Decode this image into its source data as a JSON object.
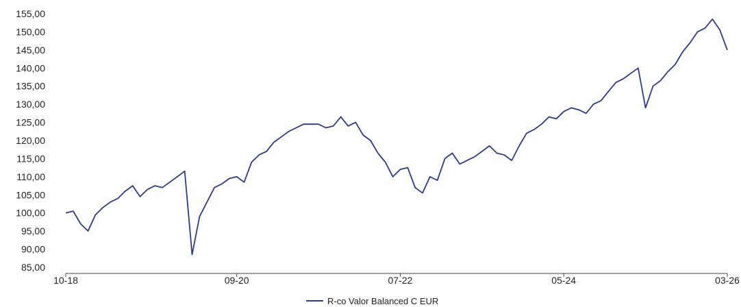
{
  "chart_data": {
    "type": "line",
    "title": "",
    "xlabel": "",
    "ylabel": "",
    "ylim": [
      85,
      155
    ],
    "yticks": [
      85,
      90,
      95,
      100,
      105,
      110,
      115,
      120,
      125,
      130,
      135,
      140,
      145,
      150,
      155
    ],
    "ytick_labels": [
      "85,00",
      "90,00",
      "95,00",
      "100,00",
      "105,00",
      "110,00",
      "115,00",
      "120,00",
      "125,00",
      "130,00",
      "135,00",
      "140,00",
      "145,00",
      "150,00",
      "155,00"
    ],
    "xlim": [
      "2018-10",
      "2026-03"
    ],
    "xticks": [
      "2018-10",
      "2020-09",
      "2022-07",
      "2024-05",
      "2026-03"
    ],
    "xtick_labels": [
      "10-18",
      "09-20",
      "07-22",
      "05-24",
      "03-26"
    ],
    "grid": false,
    "legend_position": "bottom-center",
    "series": [
      {
        "name": "R-co Valor Balanced C EUR",
        "color": "#2e3a80",
        "points": [
          [
            "2018-10",
            100.0
          ],
          [
            "2018-11",
            100.5
          ],
          [
            "2018-12",
            97.0
          ],
          [
            "2019-01",
            95.0
          ],
          [
            "2019-02",
            99.5
          ],
          [
            "2019-03",
            101.5
          ],
          [
            "2019-04",
            103.0
          ],
          [
            "2019-05",
            104.0
          ],
          [
            "2019-06",
            106.0
          ],
          [
            "2019-07",
            107.5
          ],
          [
            "2019-08",
            104.5
          ],
          [
            "2019-09",
            106.5
          ],
          [
            "2019-10",
            107.5
          ],
          [
            "2019-11",
            107.0
          ],
          [
            "2019-12",
            108.5
          ],
          [
            "2020-01",
            110.0
          ],
          [
            "2020-02",
            111.5
          ],
          [
            "2020-03",
            88.5
          ],
          [
            "2020-04",
            99.0
          ],
          [
            "2020-05",
            103.0
          ],
          [
            "2020-06",
            107.0
          ],
          [
            "2020-07",
            108.0
          ],
          [
            "2020-08",
            109.5
          ],
          [
            "2020-09",
            110.0
          ],
          [
            "2020-10",
            108.5
          ],
          [
            "2020-11",
            114.0
          ],
          [
            "2020-12",
            116.0
          ],
          [
            "2021-01",
            117.0
          ],
          [
            "2021-02",
            119.5
          ],
          [
            "2021-03",
            121.0
          ],
          [
            "2021-04",
            122.5
          ],
          [
            "2021-05",
            123.5
          ],
          [
            "2021-06",
            124.5
          ],
          [
            "2021-07",
            124.5
          ],
          [
            "2021-08",
            124.5
          ],
          [
            "2021-09",
            123.5
          ],
          [
            "2021-10",
            124.0
          ],
          [
            "2021-11",
            126.5
          ],
          [
            "2021-12",
            124.0
          ],
          [
            "2022-01",
            125.0
          ],
          [
            "2022-02",
            121.5
          ],
          [
            "2022-03",
            120.0
          ],
          [
            "2022-04",
            116.5
          ],
          [
            "2022-05",
            114.0
          ],
          [
            "2022-06",
            110.0
          ],
          [
            "2022-07",
            112.0
          ],
          [
            "2022-08",
            112.5
          ],
          [
            "2022-09",
            107.0
          ],
          [
            "2022-10",
            105.5
          ],
          [
            "2022-11",
            110.0
          ],
          [
            "2022-12",
            109.0
          ],
          [
            "2023-01",
            115.0
          ],
          [
            "2023-02",
            116.5
          ],
          [
            "2023-03",
            113.5
          ],
          [
            "2023-04",
            114.5
          ],
          [
            "2023-05",
            115.5
          ],
          [
            "2023-06",
            117.0
          ],
          [
            "2023-07",
            118.5
          ],
          [
            "2023-08",
            116.5
          ],
          [
            "2023-09",
            116.0
          ],
          [
            "2023-10",
            114.5
          ],
          [
            "2023-11",
            118.5
          ],
          [
            "2023-12",
            122.0
          ],
          [
            "2024-01",
            123.0
          ],
          [
            "2024-02",
            124.5
          ],
          [
            "2024-03",
            126.5
          ],
          [
            "2024-04",
            126.0
          ],
          [
            "2024-05",
            128.0
          ],
          [
            "2024-06",
            129.0
          ],
          [
            "2024-07",
            128.5
          ],
          [
            "2024-08",
            127.5
          ],
          [
            "2024-09",
            130.0
          ],
          [
            "2024-10",
            131.0
          ],
          [
            "2024-11",
            133.5
          ],
          [
            "2024-12",
            136.0
          ],
          [
            "2025-01",
            137.0
          ],
          [
            "2025-02",
            138.5
          ],
          [
            "2025-03",
            140.0
          ],
          [
            "2025-04",
            129.0
          ],
          [
            "2025-05",
            135.0
          ],
          [
            "2025-06",
            136.5
          ],
          [
            "2025-07",
            139.0
          ],
          [
            "2025-08",
            141.0
          ],
          [
            "2025-09",
            144.5
          ],
          [
            "2025-10",
            147.0
          ],
          [
            "2025-11",
            150.0
          ],
          [
            "2025-12",
            151.0
          ],
          [
            "2026-01",
            153.5
          ],
          [
            "2026-02",
            150.5
          ],
          [
            "2026-03",
            145.0
          ]
        ]
      }
    ]
  }
}
